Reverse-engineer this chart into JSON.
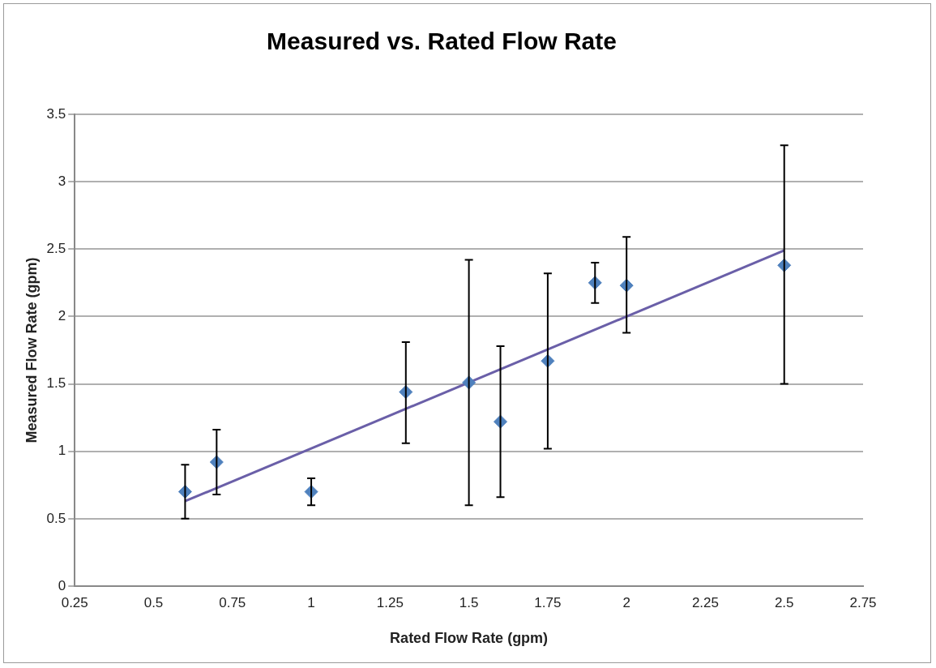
{
  "chart_data": {
    "type": "scatter",
    "title": "Measured vs. Rated Flow Rate",
    "xlabel": "Rated Flow Rate (gpm)",
    "ylabel": "Measured Flow Rate (gpm)",
    "series": [
      {
        "color": "#4f81bd",
        "marker": "diamond",
        "x": [
          0.6,
          0.7,
          1.0,
          1.3,
          1.5,
          1.6,
          1.75,
          1.9,
          2.0,
          2.5
        ],
        "values": [
          0.7,
          0.92,
          0.7,
          1.44,
          1.51,
          1.22,
          1.67,
          2.25,
          2.23,
          2.38
        ],
        "errors": [
          [
            0.5,
            0.9
          ],
          [
            0.68,
            1.16
          ],
          [
            0.6,
            0.8
          ],
          [
            1.06,
            1.81
          ],
          [
            0.6,
            2.42
          ],
          [
            0.66,
            1.78
          ],
          [
            1.02,
            2.32
          ],
          [
            2.1,
            2.4
          ],
          [
            1.88,
            2.59
          ],
          [
            1.5,
            3.27
          ]
        ]
      },
      {
        "type": "line",
        "marker": "none",
        "color": "#6a5fa8",
        "x": [
          0.6,
          2.5
        ],
        "values": [
          0.63,
          2.49
        ]
      }
    ],
    "xlim": [
      0.25,
      2.75
    ],
    "xticks": [
      0.25,
      0.5,
      0.75,
      1,
      1.25,
      1.5,
      1.75,
      2,
      2.25,
      2.5,
      2.75
    ],
    "ylim": [
      0,
      3.5
    ],
    "yticks": [
      0,
      0.5,
      1,
      1.5,
      2,
      2.5,
      3,
      3.5
    ],
    "grid": "y",
    "legend": false
  }
}
